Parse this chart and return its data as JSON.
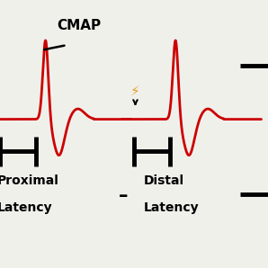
{
  "bg_color": "#f0f0eb",
  "waveform_color": "#cc0000",
  "text_color": "#000000",
  "title": "CMAP",
  "label_proximal_line1": "Proximal",
  "label_proximal_line2": "Latency",
  "label_distal_line1": "Distal",
  "label_distal_line2": "Latency",
  "minus_sign": "–",
  "lightning_color": "#e8a020"
}
